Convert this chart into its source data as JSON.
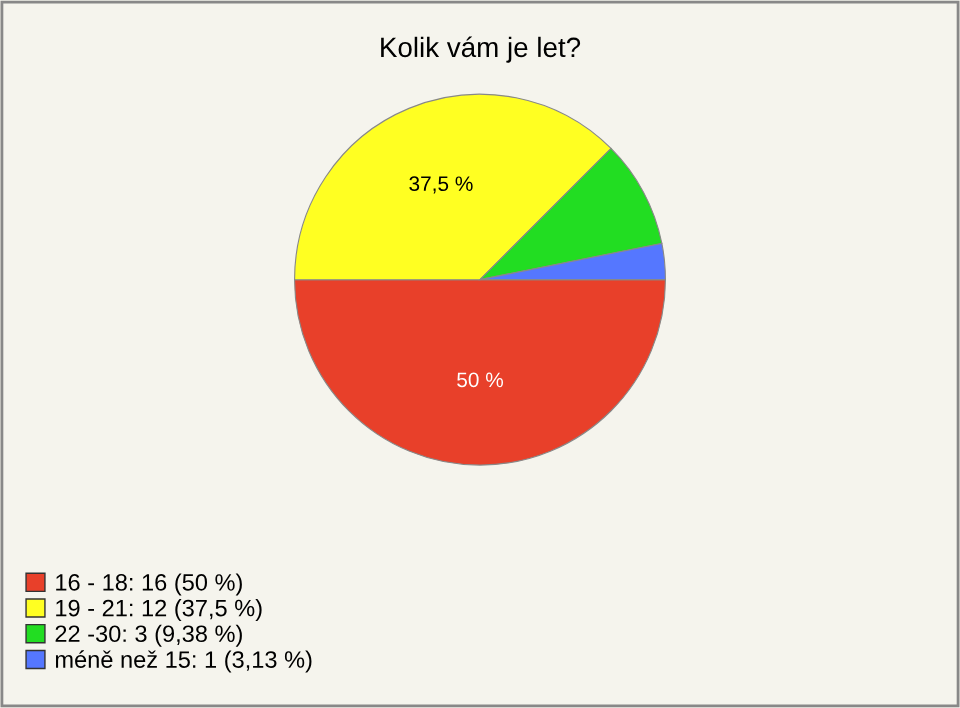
{
  "chart_data": {
    "type": "pie",
    "title": "Kolik vám je let?",
    "categories": [
      "16 - 18: 16 (50 %)",
      "19 - 21: 12 (37,5 %)",
      "22 -30: 3 (9,38 %)",
      "méně než 15: 1 (3,13 %)"
    ],
    "values": [
      50,
      37.5,
      9.38,
      3.13
    ],
    "colors": [
      "#e8402a",
      "#ffff22",
      "#22dd22",
      "#5577ff"
    ],
    "value_labels": [
      "50 %",
      "37,5 %",
      null,
      null
    ],
    "legend": "bottom left"
  }
}
